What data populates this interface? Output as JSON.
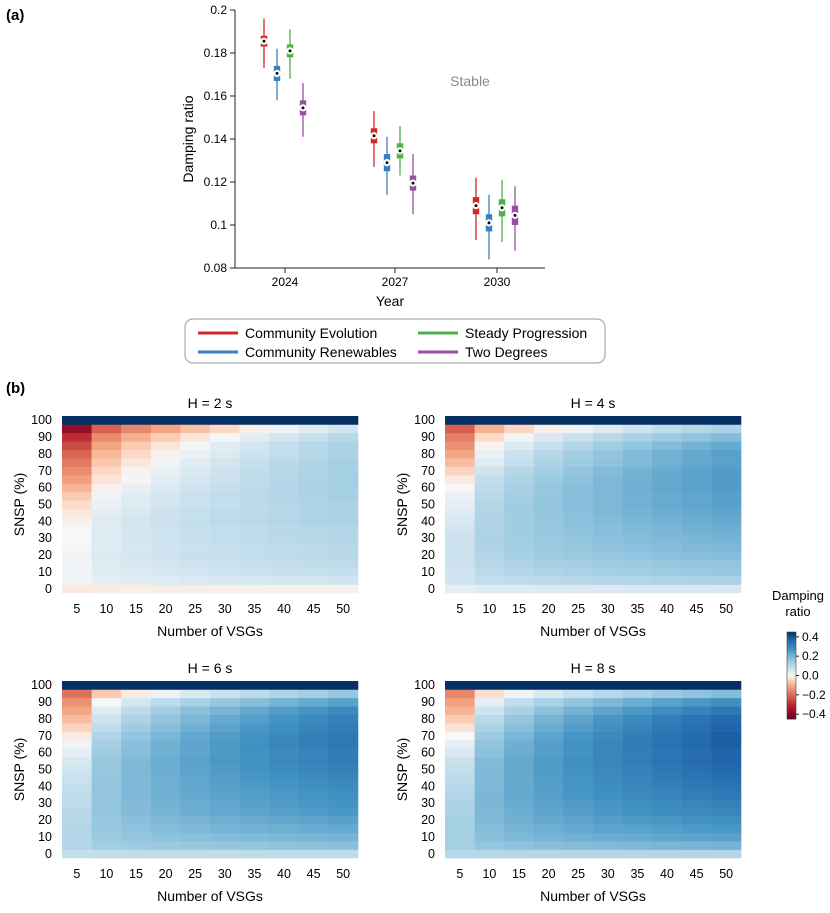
{
  "panel_labels": {
    "a": "(a)",
    "b": "(b)"
  },
  "chart_data": [
    {
      "type": "box",
      "panel": "(a)",
      "title": "",
      "xlabel": "Year",
      "ylabel": "Damping ratio",
      "categories": [
        "2024",
        "2027",
        "2030"
      ],
      "ylim": [
        0.08,
        0.2
      ],
      "yticks": [
        "0.08",
        "0.1",
        "0.12",
        "0.14",
        "0.16",
        "0.18",
        "0.2"
      ],
      "annotation": "Stable",
      "series": [
        {
          "name": "Community Evolution",
          "color": "#d62728",
          "stats": [
            {
              "min": 0.173,
              "q1": 0.183,
              "median": 0.1855,
              "q3": 0.188,
              "max": 0.196
            },
            {
              "min": 0.127,
              "q1": 0.138,
              "median": 0.1415,
              "q3": 0.145,
              "max": 0.153
            },
            {
              "min": 0.093,
              "q1": 0.105,
              "median": 0.109,
              "q3": 0.113,
              "max": 0.122
            }
          ]
        },
        {
          "name": "Community Renewables",
          "color": "#3a7ebf",
          "stats": [
            {
              "min": 0.158,
              "q1": 0.167,
              "median": 0.1705,
              "q3": 0.174,
              "max": 0.182
            },
            {
              "min": 0.114,
              "q1": 0.125,
              "median": 0.129,
              "q3": 0.133,
              "max": 0.141
            },
            {
              "min": 0.084,
              "q1": 0.097,
              "median": 0.101,
              "q3": 0.105,
              "max": 0.114
            }
          ]
        },
        {
          "name": "Steady Progression",
          "color": "#4daf4a",
          "stats": [
            {
              "min": 0.168,
              "q1": 0.178,
              "median": 0.181,
              "q3": 0.184,
              "max": 0.191
            },
            {
              "min": 0.123,
              "q1": 0.131,
              "median": 0.1345,
              "q3": 0.138,
              "max": 0.146
            },
            {
              "min": 0.092,
              "q1": 0.104,
              "median": 0.108,
              "q3": 0.112,
              "max": 0.121
            }
          ]
        },
        {
          "name": "Two Degrees",
          "color": "#984ea3",
          "stats": [
            {
              "min": 0.141,
              "q1": 0.151,
              "median": 0.1545,
              "q3": 0.158,
              "max": 0.166
            },
            {
              "min": 0.105,
              "q1": 0.116,
              "median": 0.1195,
              "q3": 0.123,
              "max": 0.133
            },
            {
              "min": 0.088,
              "q1": 0.1,
              "median": 0.1045,
              "q3": 0.109,
              "max": 0.118
            }
          ]
        }
      ]
    },
    {
      "type": "heatmap",
      "panel": "(b)",
      "xlabel": "Number of VSGs",
      "ylabel": "SNSP (%)",
      "x": [
        5,
        10,
        15,
        20,
        25,
        30,
        35,
        40,
        45,
        50
      ],
      "y": [
        0,
        5,
        10,
        15,
        20,
        25,
        30,
        35,
        40,
        45,
        50,
        55,
        60,
        65,
        70,
        75,
        80,
        85,
        90,
        95,
        100
      ],
      "ytick_labels": [
        "0",
        "10",
        "20",
        "30",
        "40",
        "50",
        "60",
        "70",
        "80",
        "90",
        "100"
      ],
      "colorbar": {
        "label": "Damping ratio",
        "range": [
          -0.45,
          0.45
        ],
        "ticks": [
          "0.4",
          "0.2",
          "0.0",
          "−0.2",
          "−0.4"
        ],
        "tick_values": [
          0.4,
          0.2,
          0.0,
          -0.2,
          -0.4
        ]
      },
      "panels": [
        {
          "title": "H = 2 s",
          "row_at_5_vsgs": [
            -0.02,
            0.01,
            0.01,
            0.01,
            0.01,
            0.0,
            0.0,
            0.0,
            -0.01,
            -0.02,
            -0.04,
            -0.06,
            -0.09,
            -0.12,
            -0.15,
            -0.18,
            -0.21,
            -0.25,
            -0.3,
            -0.38,
            0.45
          ],
          "row_at_50_vsgs": [
            -0.01,
            0.06,
            0.08,
            0.09,
            0.1,
            0.1,
            0.11,
            0.11,
            0.12,
            0.12,
            0.12,
            0.13,
            0.13,
            0.13,
            0.13,
            0.13,
            0.12,
            0.12,
            0.1,
            0.06,
            0.45
          ]
        },
        {
          "title": "H = 4 s",
          "row_at_5_vsgs": [
            0.03,
            0.06,
            0.06,
            0.07,
            0.07,
            0.07,
            0.07,
            0.06,
            0.05,
            0.04,
            0.03,
            0.02,
            0.0,
            -0.02,
            -0.05,
            -0.08,
            -0.11,
            -0.14,
            -0.17,
            -0.22,
            0.45
          ],
          "row_at_50_vsgs": [
            0.05,
            0.12,
            0.15,
            0.16,
            0.18,
            0.19,
            0.2,
            0.21,
            0.22,
            0.23,
            0.24,
            0.24,
            0.25,
            0.25,
            0.25,
            0.24,
            0.24,
            0.22,
            0.18,
            0.12,
            0.45
          ]
        },
        {
          "title": "H = 6 s",
          "row_at_5_vsgs": [
            0.08,
            0.11,
            0.11,
            0.11,
            0.1,
            0.1,
            0.09,
            0.09,
            0.08,
            0.07,
            0.06,
            0.05,
            0.03,
            0.01,
            -0.02,
            -0.05,
            -0.08,
            -0.11,
            -0.14,
            -0.19,
            0.45
          ],
          "row_at_50_vsgs": [
            0.09,
            0.17,
            0.2,
            0.22,
            0.24,
            0.26,
            0.27,
            0.28,
            0.29,
            0.3,
            0.31,
            0.32,
            0.32,
            0.33,
            0.33,
            0.32,
            0.31,
            0.29,
            0.24,
            0.15,
            0.45
          ]
        },
        {
          "title": "H = 8 s",
          "row_at_5_vsgs": [
            0.1,
            0.13,
            0.13,
            0.13,
            0.13,
            0.12,
            0.12,
            0.11,
            0.1,
            0.09,
            0.08,
            0.07,
            0.05,
            0.03,
            0.0,
            -0.03,
            -0.06,
            -0.09,
            -0.12,
            -0.16,
            0.45
          ],
          "row_at_50_vsgs": [
            0.11,
            0.2,
            0.24,
            0.26,
            0.28,
            0.3,
            0.31,
            0.33,
            0.34,
            0.35,
            0.36,
            0.37,
            0.37,
            0.38,
            0.38,
            0.37,
            0.36,
            0.33,
            0.28,
            0.18,
            0.45
          ]
        }
      ]
    }
  ]
}
